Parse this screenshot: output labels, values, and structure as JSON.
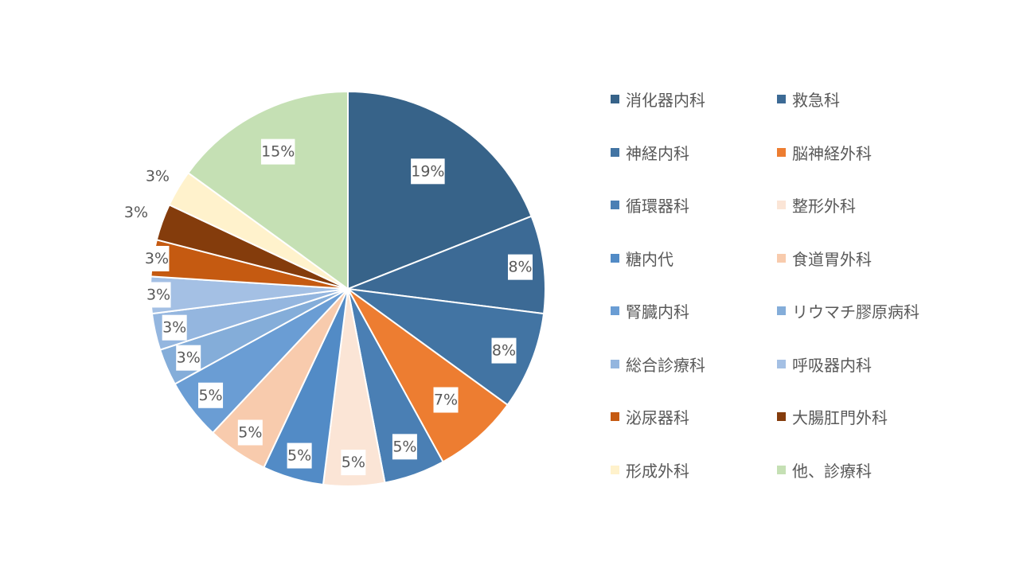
{
  "chart_data": {
    "type": "pie",
    "title": "",
    "start_angle_deg": 0,
    "direction": "clockwise",
    "legend_position": "right",
    "slices": [
      {
        "label": "消化器内科",
        "value": 19,
        "display": "19%",
        "color": "#376389"
      },
      {
        "label": "救急科",
        "value": 8,
        "display": "8%",
        "color": "#3c6a95"
      },
      {
        "label": "神経内科",
        "value": 8,
        "display": "8%",
        "color": "#4274a3"
      },
      {
        "label": "脳神経外科",
        "value": 7,
        "display": "7%",
        "color": "#ed7d31"
      },
      {
        "label": "循環器科",
        "value": 5,
        "display": "5%",
        "color": "#4a7fb4"
      },
      {
        "label": "整形外科",
        "value": 5,
        "display": "5%",
        "color": "#fbe5d6"
      },
      {
        "label": "糖内代",
        "value": 5,
        "display": "5%",
        "color": "#528bc6"
      },
      {
        "label": "食道胃外科",
        "value": 5,
        "display": "5%",
        "color": "#f8cbad"
      },
      {
        "label": "腎臓内科",
        "value": 5,
        "display": "5%",
        "color": "#6a9dd4"
      },
      {
        "label": "リウマチ膠原病科",
        "value": 3,
        "display": "3%",
        "color": "#84add9"
      },
      {
        "label": "総合診療科",
        "value": 3,
        "display": "3%",
        "color": "#94b6df"
      },
      {
        "label": "呼吸器内科",
        "value": 3,
        "display": "3%",
        "color": "#a4c0e4"
      },
      {
        "label": "泌尿器科",
        "value": 3,
        "display": "3%",
        "color": "#c55a11"
      },
      {
        "label": "大腸肛門外科",
        "value": 3,
        "display": "3%",
        "color": "#843c0c"
      },
      {
        "label": "形成外科",
        "value": 3,
        "display": "3%",
        "color": "#fff2cc"
      },
      {
        "label": "他、診療科",
        "value": 15,
        "display": "15%",
        "color": "#c5e0b4"
      }
    ]
  }
}
